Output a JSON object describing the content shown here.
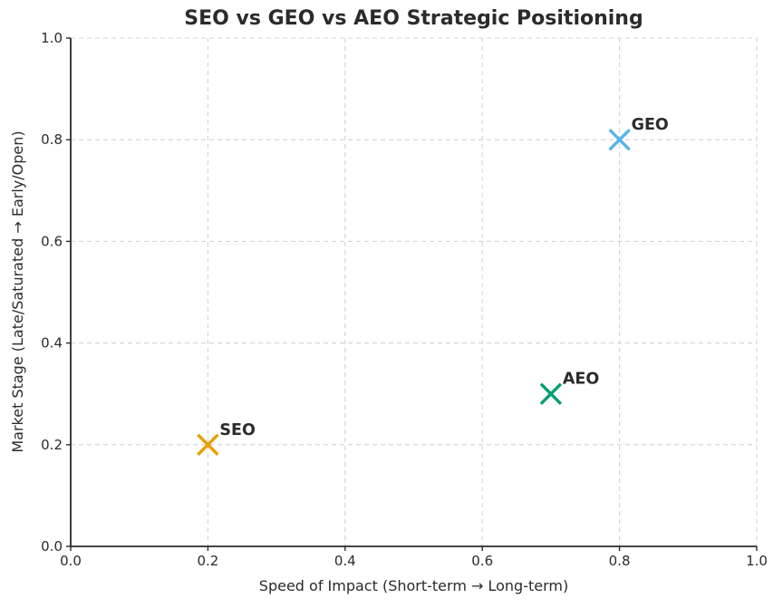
{
  "chart_data": {
    "type": "scatter",
    "title": "SEO vs GEO vs AEO Strategic Positioning",
    "xlabel": "Speed of Impact (Short-term → Long-term)",
    "ylabel": "Market Stage (Late/Saturated → Early/Open)",
    "xlim": [
      0.0,
      1.0
    ],
    "ylim": [
      0.0,
      1.0
    ],
    "xticks": [
      0.0,
      0.2,
      0.4,
      0.6,
      0.8,
      1.0
    ],
    "yticks": [
      0.0,
      0.2,
      0.4,
      0.6,
      0.8,
      1.0
    ],
    "tick_decimals": 1,
    "grid": true,
    "grid_style": "dashed",
    "legend_position": "none",
    "marker": "x",
    "points": [
      {
        "label": "SEO",
        "x": 0.2,
        "y": 0.2,
        "color": "#E69F00"
      },
      {
        "label": "AEO",
        "x": 0.7,
        "y": 0.3,
        "color": "#009E73"
      },
      {
        "label": "GEO",
        "x": 0.8,
        "y": 0.8,
        "color": "#56B4E9"
      }
    ]
  },
  "colors": {
    "background": "#ffffff",
    "text": "#2b2b2b",
    "grid": "#d4d4d4",
    "spine": "#2b2b2b"
  }
}
